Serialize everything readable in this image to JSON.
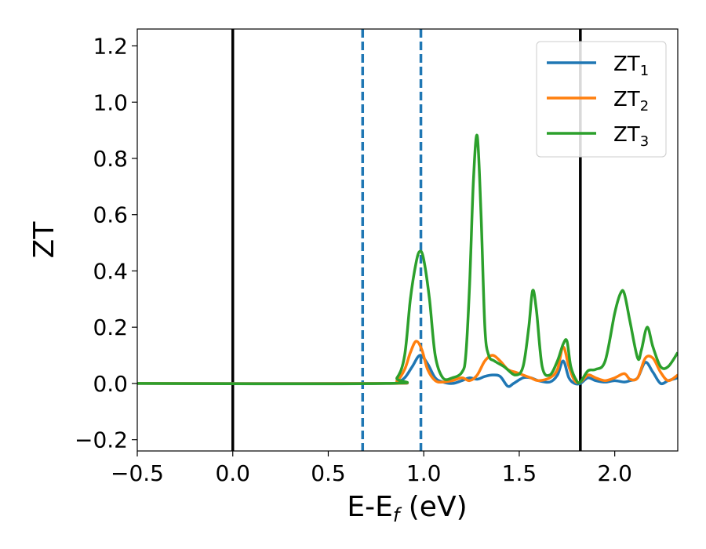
{
  "chart_data": {
    "type": "line",
    "xlabel": "E-E",
    "xlabel_sub": "f",
    "xlabel_unit": " (eV)",
    "ylabel": "ZT",
    "xlim": [
      -0.5,
      2.33
    ],
    "ylim": [
      -0.24,
      1.26
    ],
    "xticks": [
      -0.5,
      0.0,
      0.5,
      1.0,
      1.5,
      2.0
    ],
    "xtick_labels": [
      "−0.5",
      "0.0",
      "0.5",
      "1.0",
      "1.5",
      "2.0"
    ],
    "yticks": [
      -0.2,
      0.0,
      0.2,
      0.4,
      0.6,
      0.8,
      1.0,
      1.2
    ],
    "ytick_labels": [
      "−0.2",
      "0.0",
      "0.2",
      "0.4",
      "0.6",
      "0.8",
      "1.0",
      "1.2"
    ],
    "grid": false,
    "legend_position": "top-right",
    "vlines": [
      {
        "x": 0.0,
        "style": "solid",
        "color": "#000000"
      },
      {
        "x": 1.82,
        "style": "solid",
        "color": "#000000"
      },
      {
        "x": 0.68,
        "style": "dashed",
        "color": "#1f77b4"
      },
      {
        "x": 0.985,
        "style": "dashed",
        "color": "#1f77b4"
      }
    ],
    "series": [
      {
        "name": "ZT",
        "name_sub": "1",
        "color": "#1f77b4",
        "x": [
          -0.5,
          0.8,
          0.86,
          0.9,
          0.94,
          0.98,
          1.02,
          1.06,
          1.1,
          1.15,
          1.2,
          1.24,
          1.28,
          1.32,
          1.36,
          1.4,
          1.44,
          1.47,
          1.52,
          1.56,
          1.6,
          1.66,
          1.7,
          1.73,
          1.76,
          1.79,
          1.82,
          1.86,
          1.9,
          1.95,
          2.0,
          2.05,
          2.08,
          2.12,
          2.16,
          2.2,
          2.24,
          2.28,
          2.33
        ],
        "y": [
          0.0,
          0.0,
          0.005,
          0.02,
          0.06,
          0.1,
          0.07,
          0.02,
          0.005,
          0.0,
          0.01,
          0.02,
          0.015,
          0.025,
          0.03,
          0.025,
          -0.01,
          0.0,
          0.02,
          0.02,
          0.01,
          0.005,
          0.03,
          0.08,
          0.02,
          0.0,
          0.0,
          0.02,
          0.01,
          0.005,
          0.01,
          0.005,
          0.01,
          0.02,
          0.075,
          0.04,
          0.0,
          0.01,
          0.02
        ]
      },
      {
        "name": "ZT",
        "name_sub": "2",
        "color": "#ff7f0e",
        "x": [
          -0.5,
          0.8,
          0.86,
          0.9,
          0.93,
          0.96,
          0.99,
          1.02,
          1.06,
          1.1,
          1.15,
          1.2,
          1.24,
          1.28,
          1.32,
          1.36,
          1.4,
          1.44,
          1.48,
          1.52,
          1.56,
          1.6,
          1.66,
          1.7,
          1.73,
          1.76,
          1.79,
          1.82,
          1.86,
          1.9,
          1.95,
          2.0,
          2.05,
          2.08,
          2.12,
          2.16,
          2.2,
          2.24,
          2.28,
          2.33
        ],
        "y": [
          0.0,
          0.0,
          0.01,
          0.05,
          0.11,
          0.15,
          0.12,
          0.05,
          0.01,
          0.005,
          0.01,
          0.02,
          0.01,
          0.03,
          0.08,
          0.1,
          0.08,
          0.05,
          0.04,
          0.03,
          0.02,
          0.01,
          0.02,
          0.05,
          0.13,
          0.06,
          0.01,
          0.005,
          0.03,
          0.02,
          0.01,
          0.02,
          0.035,
          0.015,
          0.02,
          0.09,
          0.09,
          0.04,
          0.01,
          0.03
        ]
      },
      {
        "name": "ZT",
        "name_sub": "3",
        "color": "#2ca02c",
        "x": [
          -0.5,
          0.8,
          0.86,
          0.9,
          0.93,
          0.96,
          0.98,
          1.0,
          1.03,
          1.06,
          1.1,
          1.15,
          1.2,
          1.22,
          1.24,
          1.26,
          1.28,
          1.3,
          1.32,
          1.34,
          1.37,
          1.42,
          1.48,
          1.52,
          1.55,
          1.57,
          1.59,
          1.62,
          1.66,
          1.7,
          1.73,
          1.75,
          1.77,
          1.8,
          1.82,
          1.86,
          1.9,
          1.95,
          2.0,
          2.03,
          2.05,
          2.08,
          2.12,
          2.14,
          2.17,
          2.2,
          2.24,
          2.28,
          2.33
        ],
        "y": [
          0.0,
          0.0,
          0.02,
          0.1,
          0.3,
          0.43,
          0.47,
          0.44,
          0.3,
          0.1,
          0.02,
          0.02,
          0.04,
          0.1,
          0.35,
          0.72,
          0.88,
          0.6,
          0.2,
          0.1,
          0.08,
          0.06,
          0.03,
          0.06,
          0.2,
          0.33,
          0.26,
          0.06,
          0.03,
          0.08,
          0.14,
          0.15,
          0.06,
          0.01,
          0.005,
          0.045,
          0.05,
          0.08,
          0.25,
          0.32,
          0.32,
          0.22,
          0.09,
          0.12,
          0.2,
          0.13,
          0.06,
          0.06,
          0.11
        ]
      }
    ]
  }
}
